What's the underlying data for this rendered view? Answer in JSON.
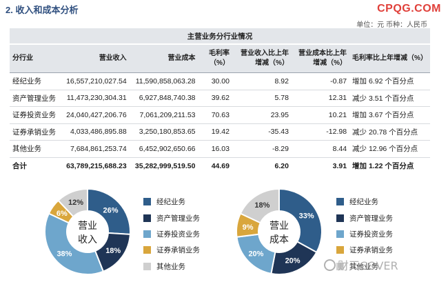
{
  "header": {
    "section_title": "2. 收入和成本分析",
    "brand": "CPQG.COM",
    "unit": "单位：元 币种：人民币"
  },
  "table": {
    "group_header": "主营业务分行业情况",
    "columns": [
      "分行业",
      "营业收入",
      "营业成本",
      "毛利率（%）",
      "营业收入比上年增减（%）",
      "营业成本比上年增减（%）",
      "毛利率比上年增减（%）"
    ],
    "rows": [
      {
        "name": "经纪业务",
        "revenue": "16,557,210,027.54",
        "cost": "11,590,858,063.28",
        "margin": "30.00",
        "rev_chg": "8.92",
        "cost_chg": "-0.87",
        "margin_dir": "增加",
        "margin_val": "6.92",
        "margin_unit": "个百分点"
      },
      {
        "name": "资产管理业务",
        "revenue": "11,473,230,304.31",
        "cost": "6,927,848,740.38",
        "margin": "39.62",
        "rev_chg": "5.78",
        "cost_chg": "12.31",
        "margin_dir": "减少",
        "margin_val": "3.51",
        "margin_unit": "个百分点"
      },
      {
        "name": "证券投资业务",
        "revenue": "24,040,427,206.76",
        "cost": "7,061,209,211.53",
        "margin": "70.63",
        "rev_chg": "23.95",
        "cost_chg": "10.21",
        "margin_dir": "增加",
        "margin_val": "3.67",
        "margin_unit": "个百分点"
      },
      {
        "name": "证券承销业务",
        "revenue": "4,033,486,895.88",
        "cost": "3,250,180,853.65",
        "margin": "19.42",
        "rev_chg": "-35.43",
        "cost_chg": "-12.98",
        "margin_dir": "减少",
        "margin_val": "20.78",
        "margin_unit": "个百分点"
      },
      {
        "name": "其他业务",
        "revenue": "7,684,861,253.74",
        "cost": "6,452,902,650.66",
        "margin": "16.03",
        "rev_chg": "-8.29",
        "cost_chg": "8.44",
        "margin_dir": "减少",
        "margin_val": "12.96",
        "margin_unit": "个百分点"
      }
    ],
    "total": {
      "name": "合计",
      "revenue": "63,789,215,688.23",
      "cost": "35,282,999,519.50",
      "margin": "44.69",
      "rev_chg": "6.20",
      "cost_chg": "3.91",
      "margin_dir": "增加",
      "margin_val": "1.22",
      "margin_unit": "个百分点"
    }
  },
  "chart_data": [
    {
      "type": "pie",
      "center_label": [
        "营业",
        "收入"
      ],
      "categories": [
        "经纪业务",
        "资产管理业务",
        "证券投资业务",
        "证券承销业务",
        "其他业务"
      ],
      "values": [
        26,
        18,
        38,
        6,
        12
      ],
      "value_labels": [
        "26%",
        "18%",
        "38%",
        "6%",
        "12%"
      ],
      "colors": [
        "#2f5d8a",
        "#1f3556",
        "#6ea6cc",
        "#d9a63c",
        "#cfcfcf"
      ]
    },
    {
      "type": "pie",
      "center_label": [
        "营业",
        "成本"
      ],
      "categories": [
        "经纪业务",
        "资产管理业务",
        "证券投资业务",
        "证券承销业务",
        "其他业务"
      ],
      "values": [
        33,
        20,
        20,
        9,
        18
      ],
      "value_labels": [
        "33%",
        "20%",
        "20%",
        "9%",
        "18%"
      ],
      "colors": [
        "#2f5d8a",
        "#1f3556",
        "#6ea6cc",
        "#d9a63c",
        "#cfcfcf"
      ]
    }
  ],
  "watermark": "财天COVER"
}
